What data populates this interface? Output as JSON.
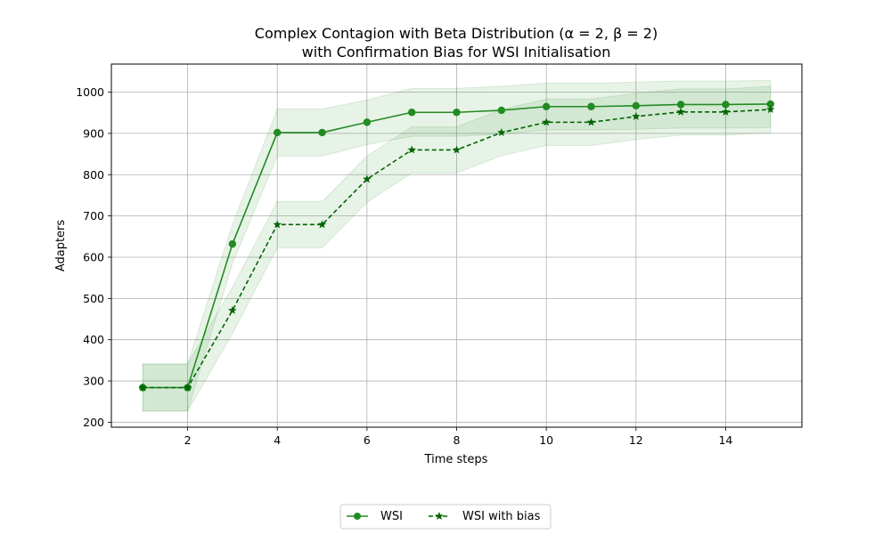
{
  "chart_data": {
    "type": "line",
    "title_line1": "Complex Contagion with Beta Distribution (α = 2, β = 2)",
    "title_line2": "with Confirmation Bias for WSI Initialisation",
    "xlabel": "Time steps",
    "ylabel": "Adapters",
    "xlim": [
      0.3,
      15.7
    ],
    "ylim": [
      188,
      1068
    ],
    "xticks": [
      2,
      4,
      6,
      8,
      10,
      12,
      14
    ],
    "yticks": [
      200,
      300,
      400,
      500,
      600,
      700,
      800,
      900,
      1000
    ],
    "grid": true,
    "legend_position": "bottom-center",
    "x": [
      1,
      2,
      3,
      4,
      5,
      6,
      7,
      8,
      9,
      10,
      11,
      12,
      13,
      14,
      15
    ],
    "series": [
      {
        "name": "WSI",
        "values": [
          284,
          284,
          632,
          902,
          902,
          927,
          951,
          951,
          956,
          965,
          965,
          967,
          970,
          970,
          971
        ],
        "band_lower": [
          227,
          227,
          585,
          845,
          845,
          873,
          893,
          893,
          898,
          908,
          908,
          910,
          913,
          913,
          914
        ],
        "band_upper": [
          341,
          341,
          679,
          959,
          959,
          981,
          1009,
          1009,
          1014,
          1022,
          1022,
          1024,
          1027,
          1027,
          1028
        ],
        "color": "#228B22",
        "marker": "circle",
        "linestyle": "solid"
      },
      {
        "name": "WSI with bias",
        "values": [
          284,
          284,
          471,
          679,
          679,
          789,
          860,
          860,
          902,
          927,
          927,
          941,
          952,
          952,
          958
        ],
        "band_lower": [
          227,
          227,
          415,
          623,
          623,
          733,
          804,
          804,
          846,
          871,
          871,
          885,
          896,
          896,
          902
        ],
        "band_upper": [
          341,
          341,
          527,
          735,
          735,
          845,
          916,
          916,
          958,
          983,
          983,
          997,
          1008,
          1008,
          1014
        ],
        "color": "#006400",
        "marker": "star",
        "linestyle": "dashed"
      }
    ]
  }
}
